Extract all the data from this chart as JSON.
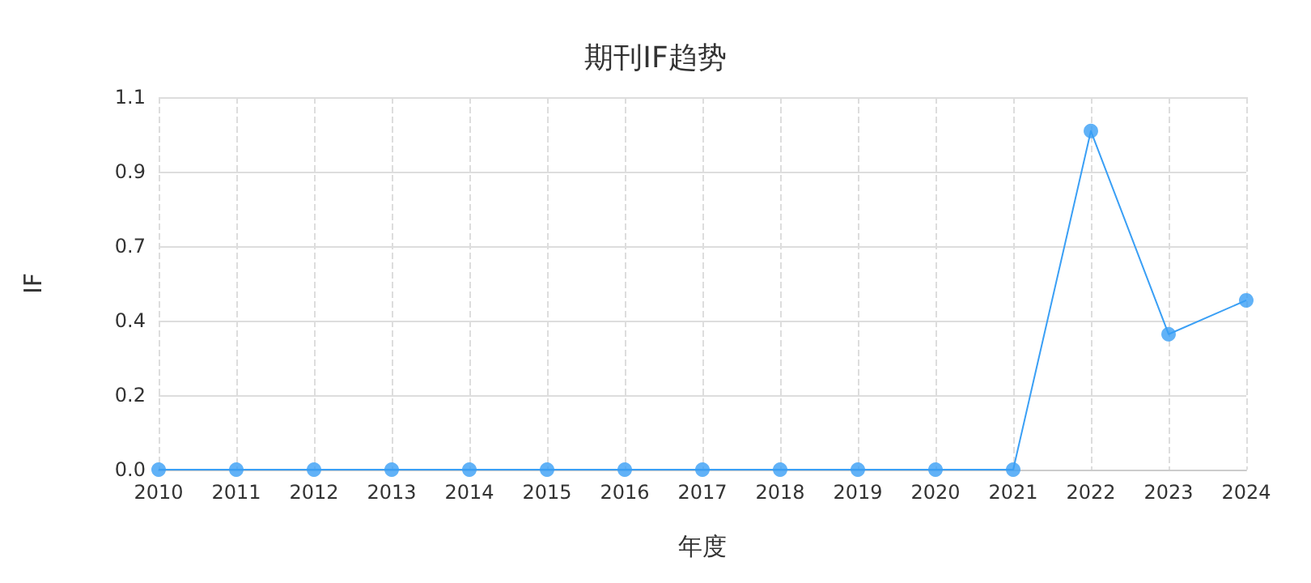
{
  "chart_data": {
    "type": "line",
    "title": "期刊IF趋势",
    "xlabel": "年度",
    "ylabel": "IF",
    "categories": [
      "2010",
      "2011",
      "2012",
      "2013",
      "2014",
      "2015",
      "2016",
      "2017",
      "2018",
      "2019",
      "2020",
      "2021",
      "2022",
      "2023",
      "2024"
    ],
    "series": [
      {
        "color": "#3a9ff5",
        "values": [
          0,
          0,
          0,
          0,
          0,
          0,
          0,
          0,
          0,
          0,
          0,
          0,
          1.0,
          0.4,
          0.5
        ]
      }
    ],
    "ylim": [
      0,
      1.1
    ],
    "yticks": [
      {
        "value": 0,
        "label": "0.0"
      },
      {
        "value": 0.22,
        "label": "0.2"
      },
      {
        "value": 0.44,
        "label": "0.4"
      },
      {
        "value": 0.66,
        "label": "0.7"
      },
      {
        "value": 0.88,
        "label": "0.9"
      },
      {
        "value": 1.1,
        "label": "1.1"
      }
    ],
    "grid": true,
    "marker": "circle",
    "line_style": "solid"
  }
}
